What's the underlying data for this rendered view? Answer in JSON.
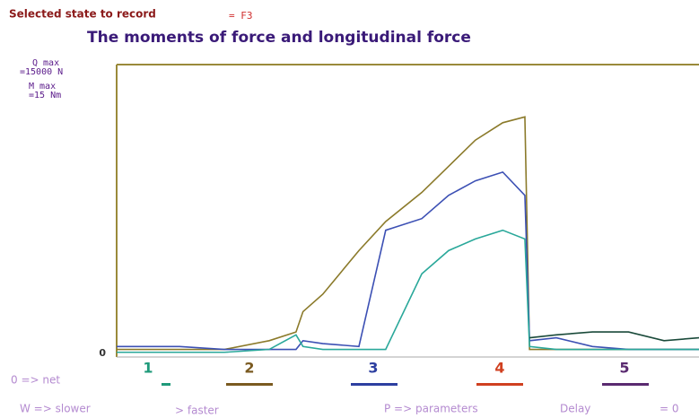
{
  "header": {
    "state_label": "Selected state to record",
    "state_key": "= F3"
  },
  "chart_data": {
    "type": "line",
    "title": "The moments of force and longitudinal force",
    "q_max_label": "Q max",
    "q_max_value": "=15000 N",
    "m_max_label": "M max",
    "m_max_value": "=15 Nm",
    "x": [
      0,
      10.8,
      18.5,
      26.2,
      30.8,
      32.0,
      35.4,
      41.6,
      46.2,
      52.4,
      57.0,
      61.6,
      66.3,
      70.1,
      70.9,
      75.5,
      81.7,
      87.9,
      94.0,
      100
    ],
    "xlim": [
      0,
      100
    ],
    "ylim": [
      0,
      1
    ],
    "yticks": [
      0
    ],
    "series": [
      {
        "color": "#8b7a2a",
        "values": [
          0.02,
          0.02,
          0.02,
          0.05,
          0.08,
          0.15,
          0.21,
          0.36,
          0.46,
          0.56,
          0.65,
          0.74,
          0.8,
          0.82,
          0.02,
          0.02,
          0.02,
          0.02,
          0.02,
          0.02
        ]
      },
      {
        "color": "#3c50b4",
        "values": [
          0.03,
          0.03,
          0.02,
          0.02,
          0.02,
          0.05,
          0.04,
          0.03,
          0.43,
          0.47,
          0.55,
          0.6,
          0.63,
          0.55,
          0.05,
          0.06,
          0.03,
          0.02,
          0.02,
          0.02
        ]
      },
      {
        "color": "#2aa89a",
        "values": [
          0.01,
          0.01,
          0.01,
          0.02,
          0.07,
          0.03,
          0.02,
          0.02,
          0.02,
          0.28,
          0.36,
          0.4,
          0.43,
          0.4,
          0.03,
          0.02,
          0.02,
          0.02,
          0.02,
          0.02
        ]
      },
      {
        "color": "#1a4a3a",
        "values": [
          null,
          null,
          null,
          null,
          null,
          null,
          null,
          null,
          null,
          null,
          null,
          null,
          null,
          null,
          0.06,
          0.07,
          0.08,
          0.08,
          0.05,
          0.06
        ]
      }
    ],
    "channels": [
      {
        "label": "1",
        "color": "#1f9a7a"
      },
      {
        "label": "2",
        "color": "#7a5a20"
      },
      {
        "label": "3",
        "color": "#2d3fa0"
      },
      {
        "label": "4",
        "color": "#d04020"
      },
      {
        "label": "5",
        "color": "#5a2a70"
      }
    ]
  },
  "footer": {
    "net": "0 => net",
    "slower": "W => slower",
    "faster": "> faster",
    "parameters": "P => parameters",
    "delay": "Delay",
    "delay_value": "= 0"
  }
}
